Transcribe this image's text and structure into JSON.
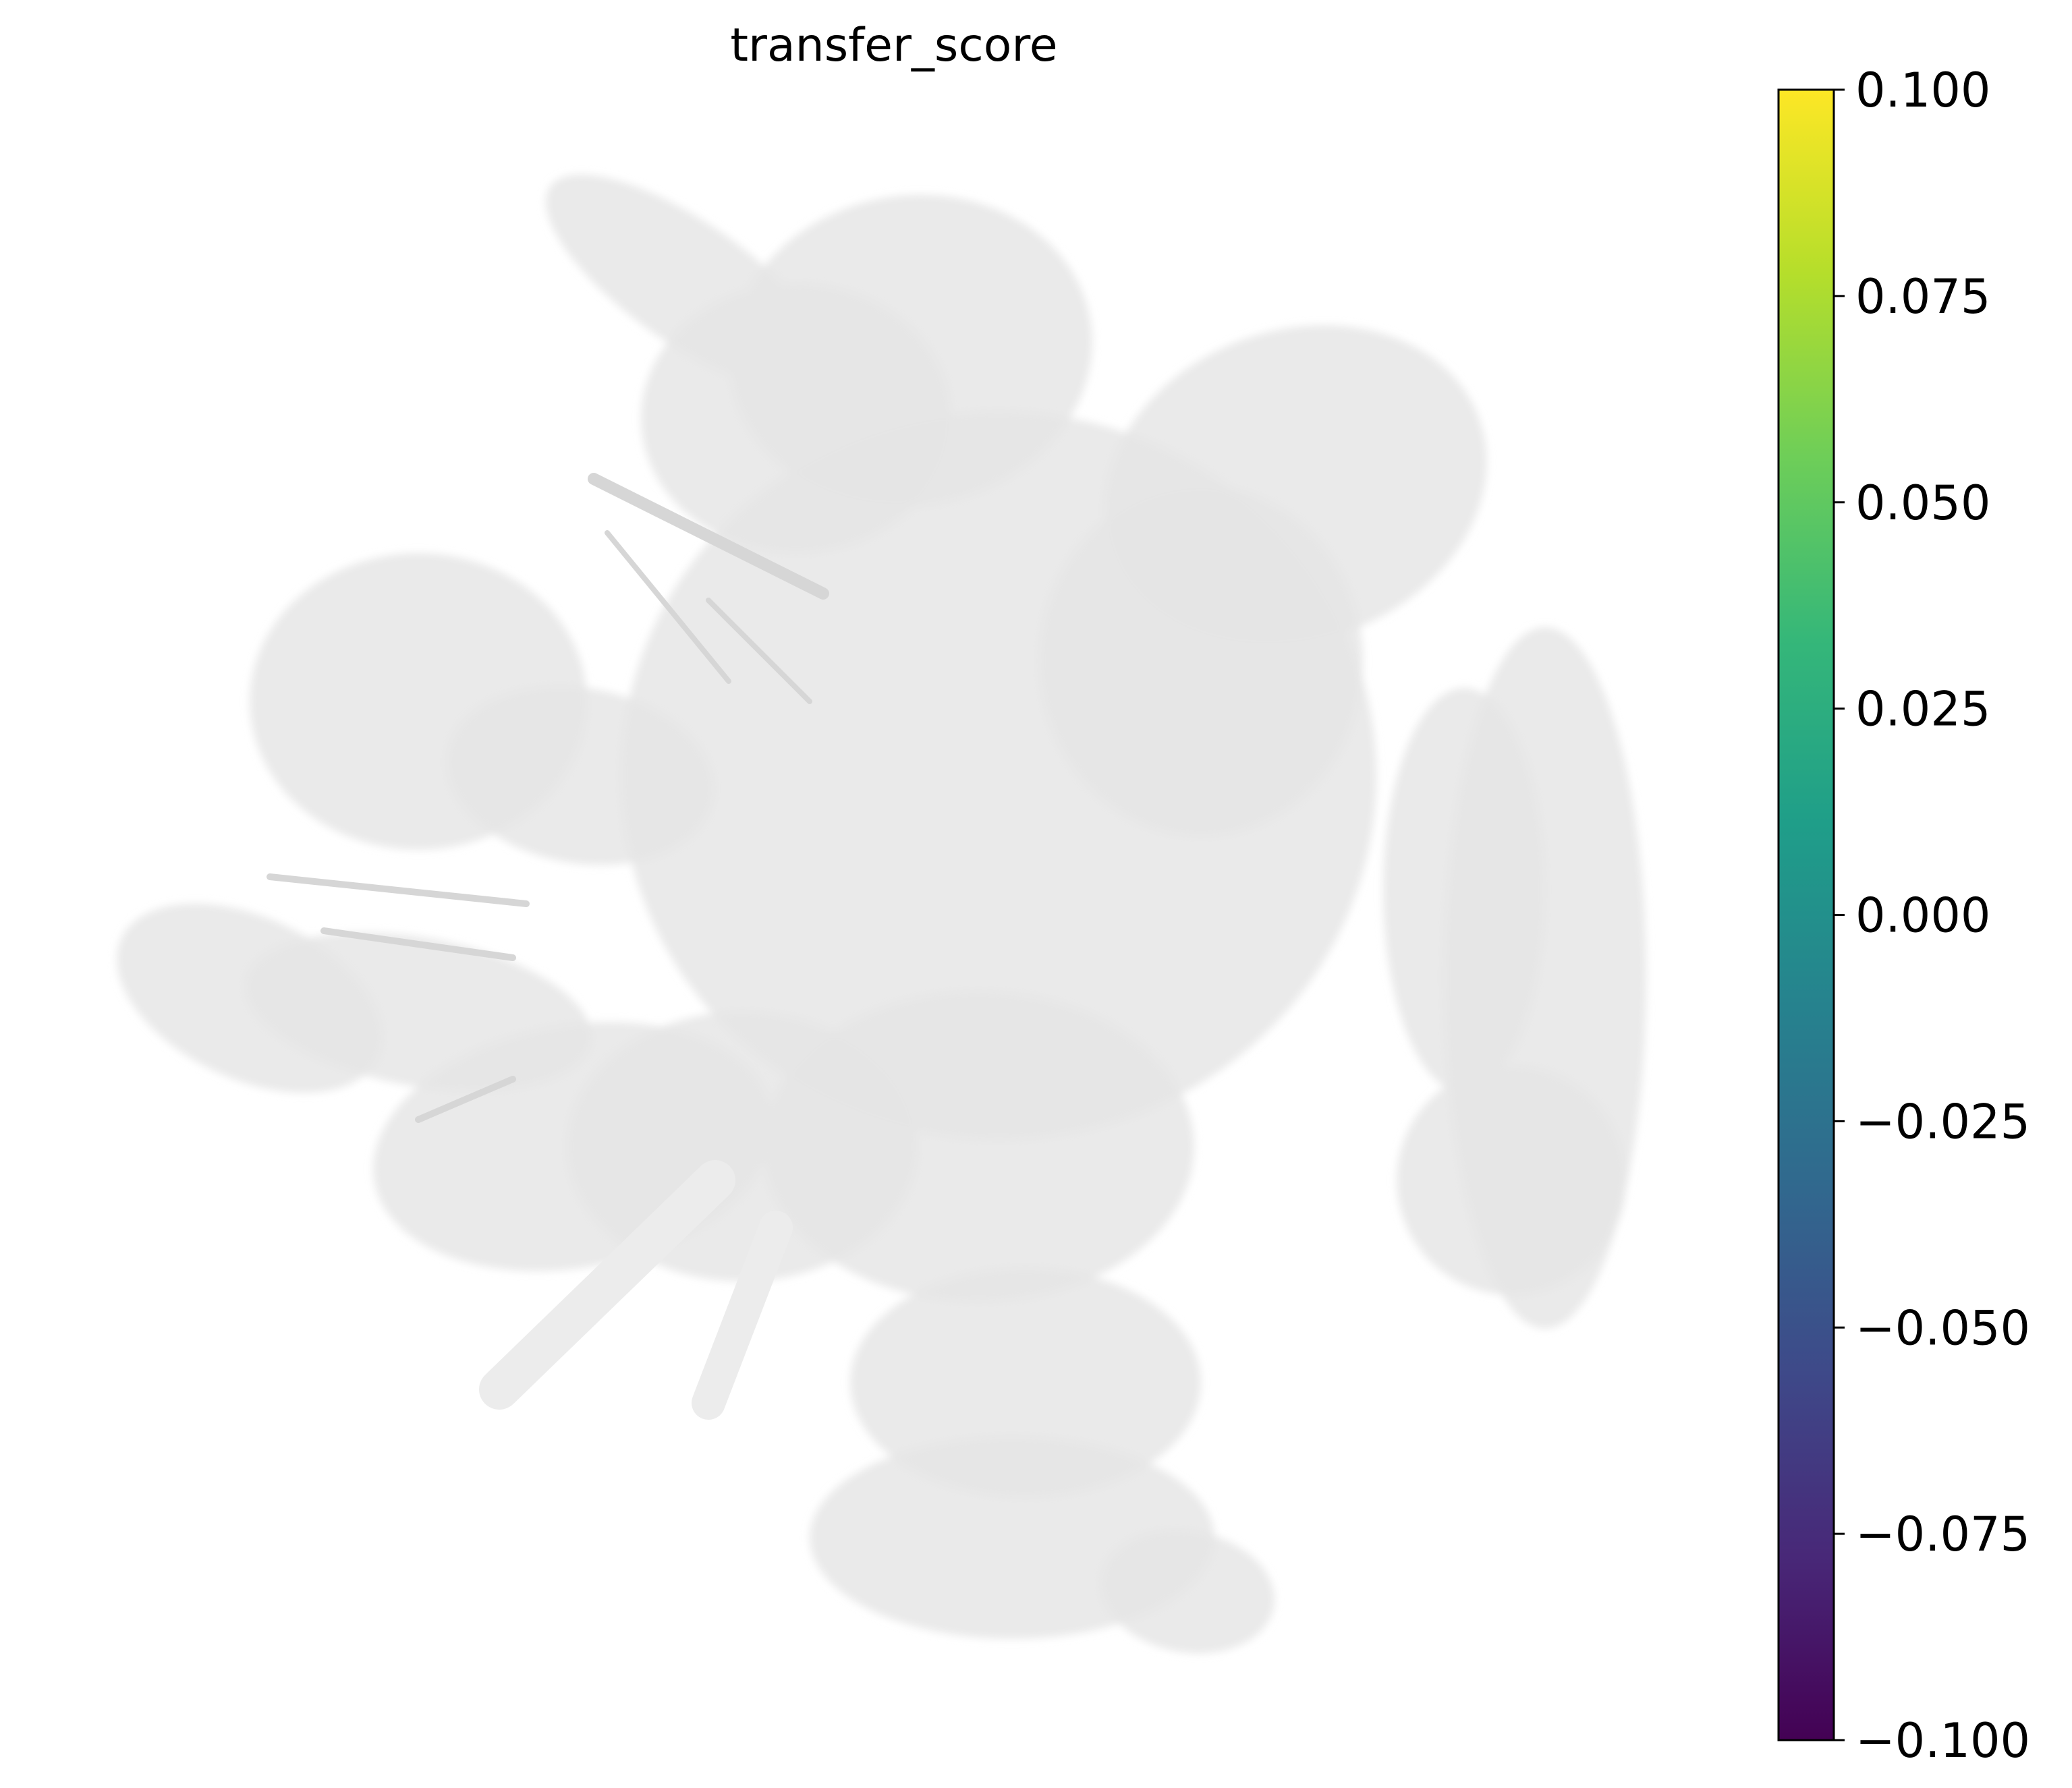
{
  "chart_data": {
    "type": "scatter",
    "title": "transfer_score",
    "xlabel": "",
    "ylabel": "",
    "grid": false,
    "axes_visible": false,
    "point_color": "#e6e6e6",
    "colorbar": {
      "colormap": "viridis",
      "vmin": -0.1,
      "vmax": 0.1,
      "stops": [
        "#440154",
        "#482878",
        "#3e4989",
        "#31688e",
        "#26828e",
        "#1f9e89",
        "#35b779",
        "#6ece58",
        "#b5de2b",
        "#fde725"
      ],
      "ticks": [
        {
          "value": 0.1,
          "label": "0.100"
        },
        {
          "value": 0.075,
          "label": "0.075"
        },
        {
          "value": 0.05,
          "label": "0.050"
        },
        {
          "value": 0.025,
          "label": "0.025"
        },
        {
          "value": 0.0,
          "label": "0.000"
        },
        {
          "value": -0.025,
          "label": "−0.025"
        },
        {
          "value": -0.05,
          "label": "−0.050"
        },
        {
          "value": -0.075,
          "label": "−0.075"
        },
        {
          "value": -0.1,
          "label": "−0.100"
        }
      ]
    }
  }
}
